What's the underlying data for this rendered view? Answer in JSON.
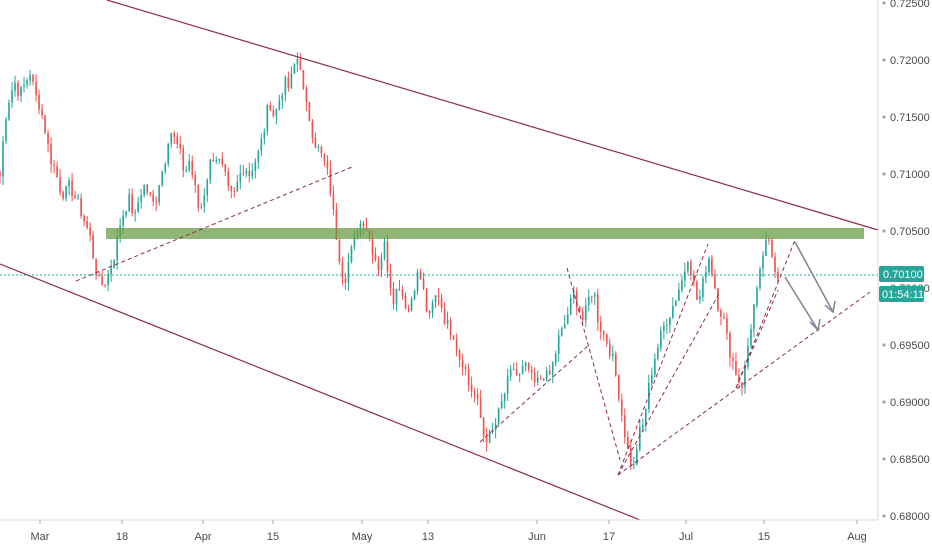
{
  "chart_data": {
    "type": "candlestick",
    "symbol_price_axis": {
      "ticks": [
        "0.72500",
        "0.72000",
        "0.71500",
        "0.71000",
        "0.70500",
        "0.70000",
        "0.69500",
        "0.69000",
        "0.68500",
        "0.68000"
      ],
      "ylim": [
        0.6795,
        0.7252
      ]
    },
    "x_axis": {
      "ticks": [
        "Mar",
        "18",
        "Apr",
        "15",
        "May",
        "13",
        "Jun",
        "17",
        "Jul",
        "15",
        "Aug"
      ]
    },
    "current_price": {
      "label": "0.70100",
      "countdown": "01:54:11",
      "color": "#26a69a"
    },
    "colors": {
      "up": "#26a69a",
      "down": "#ef5350",
      "channel": "#8e2a4e",
      "zone": "#6b9e4a",
      "arrow": "#808b96",
      "axis_border": "#d6dbe0"
    },
    "candles": {
      "start_day": 0,
      "description_closes": [
        0.7098,
        0.7148,
        0.717,
        0.718,
        0.717,
        0.7178,
        0.719,
        0.717,
        0.716,
        0.714,
        0.7115,
        0.7105,
        0.7088,
        0.7082,
        0.709,
        0.708,
        0.707,
        0.7058,
        0.7046,
        0.702,
        0.7002,
        0.7005,
        0.7015,
        0.703,
        0.7055,
        0.707,
        0.7078,
        0.706,
        0.7082,
        0.709,
        0.708,
        0.7072,
        0.7095,
        0.711,
        0.714,
        0.713,
        0.712,
        0.71,
        0.7112,
        0.709,
        0.7065,
        0.7085,
        0.7108,
        0.7118,
        0.711,
        0.71,
        0.708,
        0.7082,
        0.7098,
        0.7108,
        0.71,
        0.711,
        0.712,
        0.714,
        0.7165,
        0.715,
        0.7165,
        0.718,
        0.7175,
        0.7195,
        0.7205,
        0.7165,
        0.715,
        0.713,
        0.712,
        0.711,
        0.7095,
        0.706,
        0.703,
        0.7005,
        0.7025,
        0.704,
        0.7055,
        0.706,
        0.7045,
        0.703,
        0.7018,
        0.704,
        0.701,
        0.699,
        0.7005,
        0.699,
        0.698,
        0.7002,
        0.7015,
        0.6995,
        0.697,
        0.699,
        0.6995,
        0.6975,
        0.6965,
        0.696,
        0.694,
        0.6935,
        0.6915,
        0.6908,
        0.6895,
        0.687,
        0.6868,
        0.6875,
        0.689,
        0.6905,
        0.692,
        0.693,
        0.692,
        0.693,
        0.6928,
        0.6915,
        0.6918,
        0.6925,
        0.692,
        0.6935,
        0.6955,
        0.6965,
        0.698,
        0.6995,
        0.6985,
        0.697,
        0.699,
        0.7,
        0.697,
        0.696,
        0.695,
        0.6935,
        0.691,
        0.688,
        0.6855,
        0.684,
        0.687,
        0.688,
        0.691,
        0.6935,
        0.695,
        0.6965,
        0.6975,
        0.6985,
        0.6998,
        0.701,
        0.703,
        0.7005,
        0.6985,
        0.7005,
        0.703,
        0.701,
        0.6985,
        0.6975,
        0.695,
        0.6935,
        0.692,
        0.6915,
        0.695,
        0.698,
        0.7,
        0.703,
        0.7042,
        0.7025,
        0.701
      ]
    },
    "annotations": {
      "zone_low": 0.70445,
      "zone_high": 0.70545
    }
  }
}
